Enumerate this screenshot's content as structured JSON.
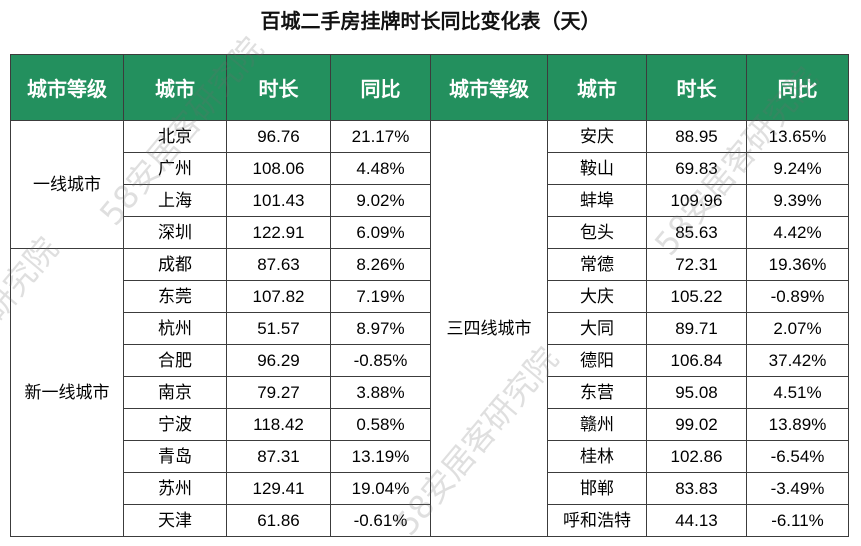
{
  "colors": {
    "header_bg": "#23905e",
    "header_text": "#ffffff"
  },
  "watermark": "58安居客研究院",
  "chart_data": {
    "type": "table",
    "title": "百城二手房挂牌时长同比变化表（天）",
    "columns": [
      "城市等级",
      "城市",
      "时长",
      "同比",
      "城市等级",
      "城市",
      "时长",
      "同比"
    ],
    "left_groups": [
      {
        "tier": "一线城市",
        "rows": [
          {
            "city": "北京",
            "days": 96.76,
            "yoy": "21.17%"
          },
          {
            "city": "广州",
            "days": 108.06,
            "yoy": "4.48%"
          },
          {
            "city": "上海",
            "days": 101.43,
            "yoy": "9.02%"
          },
          {
            "city": "深圳",
            "days": 122.91,
            "yoy": "6.09%"
          }
        ]
      },
      {
        "tier": "新一线城市",
        "rows": [
          {
            "city": "成都",
            "days": 87.63,
            "yoy": "8.26%"
          },
          {
            "city": "东莞",
            "days": 107.82,
            "yoy": "7.19%"
          },
          {
            "city": "杭州",
            "days": 51.57,
            "yoy": "8.97%"
          },
          {
            "city": "合肥",
            "days": 96.29,
            "yoy": "-0.85%"
          },
          {
            "city": "南京",
            "days": 79.27,
            "yoy": "3.88%"
          },
          {
            "city": "宁波",
            "days": 118.42,
            "yoy": "0.58%"
          },
          {
            "city": "青岛",
            "days": 87.31,
            "yoy": "13.19%"
          },
          {
            "city": "苏州",
            "days": 129.41,
            "yoy": "19.04%"
          },
          {
            "city": "天津",
            "days": 61.86,
            "yoy": "-0.61%"
          }
        ]
      }
    ],
    "right_groups": [
      {
        "tier": "三四线城市",
        "rows": [
          {
            "city": "安庆",
            "days": 88.95,
            "yoy": "13.65%"
          },
          {
            "city": "鞍山",
            "days": 69.83,
            "yoy": "9.24%"
          },
          {
            "city": "蚌埠",
            "days": 109.96,
            "yoy": "9.39%"
          },
          {
            "city": "包头",
            "days": 85.63,
            "yoy": "4.42%"
          },
          {
            "city": "常德",
            "days": 72.31,
            "yoy": "19.36%"
          },
          {
            "city": "大庆",
            "days": 105.22,
            "yoy": "-0.89%"
          },
          {
            "city": "大同",
            "days": 89.71,
            "yoy": "2.07%"
          },
          {
            "city": "德阳",
            "days": 106.84,
            "yoy": "37.42%"
          },
          {
            "city": "东营",
            "days": 95.08,
            "yoy": "4.51%"
          },
          {
            "city": "赣州",
            "days": 99.02,
            "yoy": "13.89%"
          },
          {
            "city": "桂林",
            "days": 102.86,
            "yoy": "-6.54%"
          },
          {
            "city": "邯郸",
            "days": 83.83,
            "yoy": "-3.49%"
          },
          {
            "city": "呼和浩特",
            "days": 44.13,
            "yoy": "-6.11%"
          }
        ]
      }
    ]
  }
}
